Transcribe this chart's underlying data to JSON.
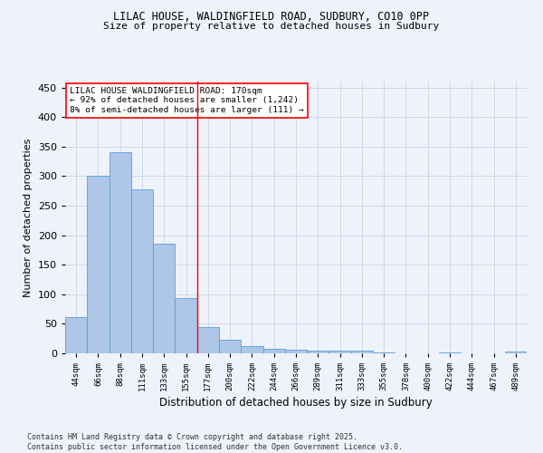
{
  "title1": "LILAC HOUSE, WALDINGFIELD ROAD, SUDBURY, CO10 0PP",
  "title2": "Size of property relative to detached houses in Sudbury",
  "xlabel": "Distribution of detached houses by size in Sudbury",
  "ylabel": "Number of detached properties",
  "categories": [
    "44sqm",
    "66sqm",
    "88sqm",
    "111sqm",
    "133sqm",
    "155sqm",
    "177sqm",
    "200sqm",
    "222sqm",
    "244sqm",
    "266sqm",
    "289sqm",
    "311sqm",
    "333sqm",
    "355sqm",
    "378sqm",
    "400sqm",
    "422sqm",
    "444sqm",
    "467sqm",
    "489sqm"
  ],
  "values": [
    62,
    300,
    340,
    278,
    185,
    93,
    45,
    23,
    13,
    7,
    6,
    5,
    5,
    4,
    2,
    0,
    0,
    1,
    0,
    0,
    3
  ],
  "bar_color": "#aec6e8",
  "bar_edge_color": "#5a9fd4",
  "vline_x": 5.5,
  "vline_color": "red",
  "annotation_title": "LILAC HOUSE WALDINGFIELD ROAD: 170sqm",
  "annotation_line1": "← 92% of detached houses are smaller (1,242)",
  "annotation_line2": "8% of semi-detached houses are larger (111) →",
  "annotation_box_color": "white",
  "annotation_box_edge": "red",
  "ylim": [
    0,
    460
  ],
  "yticks": [
    0,
    50,
    100,
    150,
    200,
    250,
    300,
    350,
    400,
    450
  ],
  "footer": "Contains HM Land Registry data © Crown copyright and database right 2025.\nContains public sector information licensed under the Open Government Licence v3.0.",
  "bg_color": "#eef2fb",
  "grid_color": "#c8d4ea"
}
